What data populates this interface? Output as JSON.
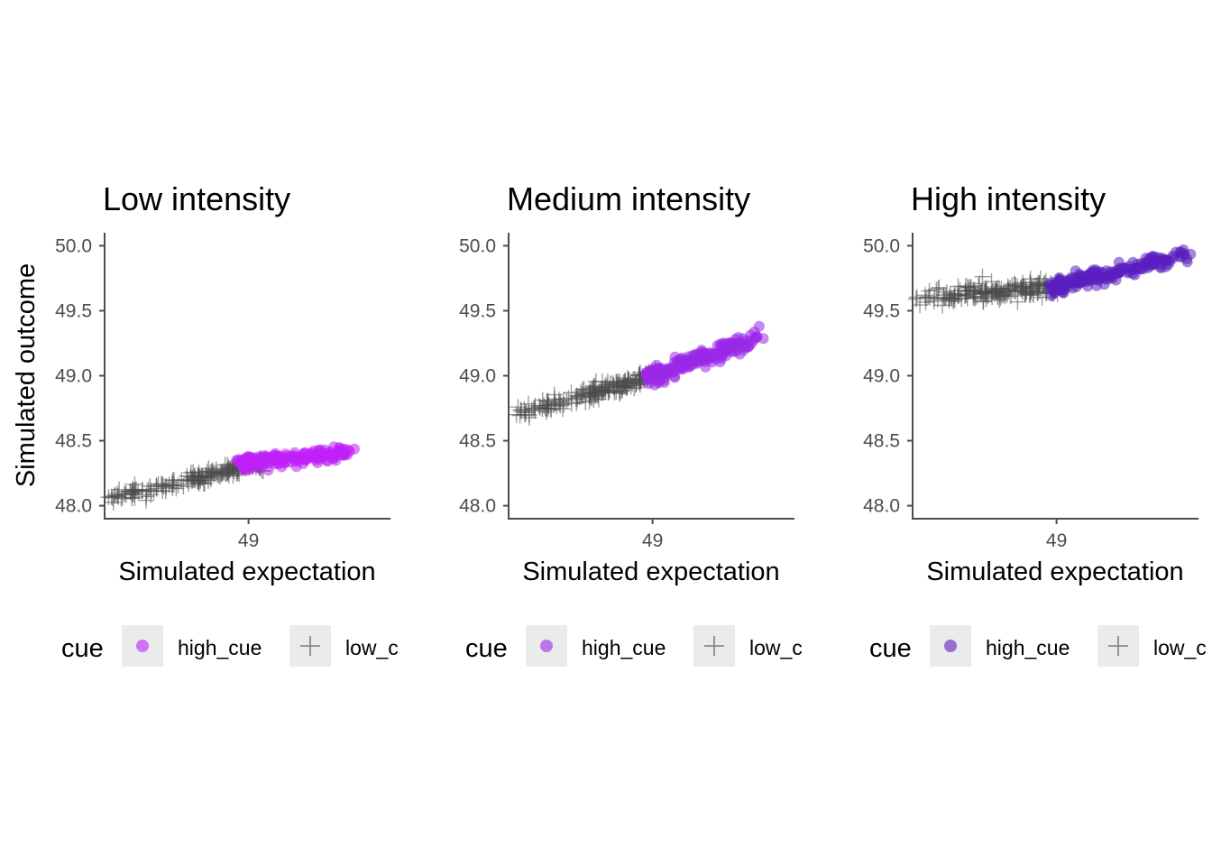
{
  "chart_data": [
    {
      "type": "scatter",
      "title": "Low intensity",
      "xlabel": "Simulated expectation",
      "ylabel": "Simulated outcome",
      "xlim": [
        48.0,
        49.98
      ],
      "ylim": [
        47.9,
        50.1
      ],
      "xticks": [
        49
      ],
      "xtick_labels": [
        "49"
      ],
      "yticks": [
        48.0,
        48.5,
        49.0,
        49.5,
        50.0
      ],
      "ytick_labels": [
        "48.0",
        "48.5",
        "49.0",
        "49.5",
        "50.0"
      ],
      "legend": {
        "title": "cue",
        "position": "bottom",
        "entries": [
          "high_cue",
          "low_c"
        ]
      },
      "series": [
        {
          "name": "high_cue",
          "marker": "circle",
          "color": "#c020f8",
          "trend": {
            "x_from": 48.95,
            "x_to": 49.7,
            "y_from": 48.33,
            "y_to": 48.41
          },
          "spread": 0.025,
          "points": [
            [
              49.63,
              48.41
            ],
            [
              49.58,
              48.36
            ],
            [
              49.54,
              48.35
            ],
            [
              49.5,
              48.43
            ],
            [
              49.48,
              48.39
            ]
          ]
        },
        {
          "name": "low_c",
          "marker": "cross",
          "color": "#4d4d4d",
          "trend": {
            "x_from": 48.05,
            "x_to": 49.1,
            "y_from": 48.06,
            "y_to": 48.33
          },
          "spread": 0.025,
          "points": [
            [
              48.06,
              48.06
            ],
            [
              48.1,
              48.07
            ],
            [
              48.15,
              48.11
            ],
            [
              48.22,
              48.12
            ],
            [
              48.32,
              48.15
            ]
          ]
        }
      ],
      "grid": false
    },
    {
      "type": "scatter",
      "title": "Medium intensity",
      "xlabel": "Simulated expectation",
      "ylabel": "",
      "xlim": [
        48.0,
        49.98
      ],
      "ylim": [
        47.9,
        50.1
      ],
      "xticks": [
        49
      ],
      "xtick_labels": [
        "49"
      ],
      "yticks": [
        48.0,
        48.5,
        49.0,
        49.5,
        50.0
      ],
      "ytick_labels": [
        "48.0",
        "48.5",
        "49.0",
        "49.5",
        "50.0"
      ],
      "legend": {
        "title": "cue",
        "position": "bottom",
        "entries": [
          "high_cue",
          "low_c"
        ]
      },
      "series": [
        {
          "name": "high_cue",
          "marker": "circle",
          "color": "#9a28e8",
          "trend": {
            "x_from": 48.97,
            "x_to": 49.75,
            "y_from": 48.99,
            "y_to": 49.3
          },
          "spread": 0.03,
          "points": [
            [
              49.72,
              49.3
            ],
            [
              49.65,
              49.27
            ],
            [
              49.6,
              49.24
            ],
            [
              49.55,
              49.23
            ],
            [
              49.5,
              49.19
            ]
          ]
        },
        {
          "name": "low_c",
          "marker": "cross",
          "color": "#4d4d4d",
          "trend": {
            "x_from": 48.05,
            "x_to": 49.05,
            "y_from": 48.7,
            "y_to": 49.02
          },
          "spread": 0.03,
          "points": [
            [
              48.06,
              48.7
            ],
            [
              48.12,
              48.72
            ],
            [
              48.18,
              48.75
            ],
            [
              48.25,
              48.77
            ],
            [
              48.32,
              48.78
            ]
          ]
        }
      ],
      "grid": false
    },
    {
      "type": "scatter",
      "title": "High intensity",
      "xlabel": "Simulated expectation",
      "ylabel": "",
      "xlim": [
        48.0,
        49.98
      ],
      "ylim": [
        47.9,
        50.1
      ],
      "xticks": [
        49
      ],
      "xtick_labels": [
        "49"
      ],
      "yticks": [
        48.0,
        48.5,
        49.0,
        49.5,
        50.0
      ],
      "ytick_labels": [
        "48.0",
        "48.5",
        "49.0",
        "49.5",
        "50.0"
      ],
      "legend": {
        "title": "cue",
        "position": "bottom",
        "entries": [
          "high_cue",
          "low_c"
        ]
      },
      "series": [
        {
          "name": "high_cue",
          "marker": "circle",
          "color": "#5a1fc0",
          "trend": {
            "x_from": 48.97,
            "x_to": 49.9,
            "y_from": 49.68,
            "y_to": 49.93
          },
          "spread": 0.03,
          "points": [
            [
              49.88,
              49.93
            ],
            [
              49.8,
              49.92
            ],
            [
              49.75,
              49.89
            ],
            [
              49.68,
              49.86
            ],
            [
              49.62,
              49.85
            ]
          ]
        },
        {
          "name": "low_c",
          "marker": "cross",
          "color": "#4d4d4d",
          "trend": {
            "x_from": 48.03,
            "x_to": 49.05,
            "y_from": 49.6,
            "y_to": 49.69
          },
          "spread": 0.035,
          "points": [
            [
              48.03,
              49.59
            ],
            [
              48.1,
              49.6
            ],
            [
              48.17,
              49.66
            ],
            [
              48.22,
              49.62
            ],
            [
              48.3,
              49.63
            ]
          ]
        }
      ],
      "grid": false
    }
  ]
}
